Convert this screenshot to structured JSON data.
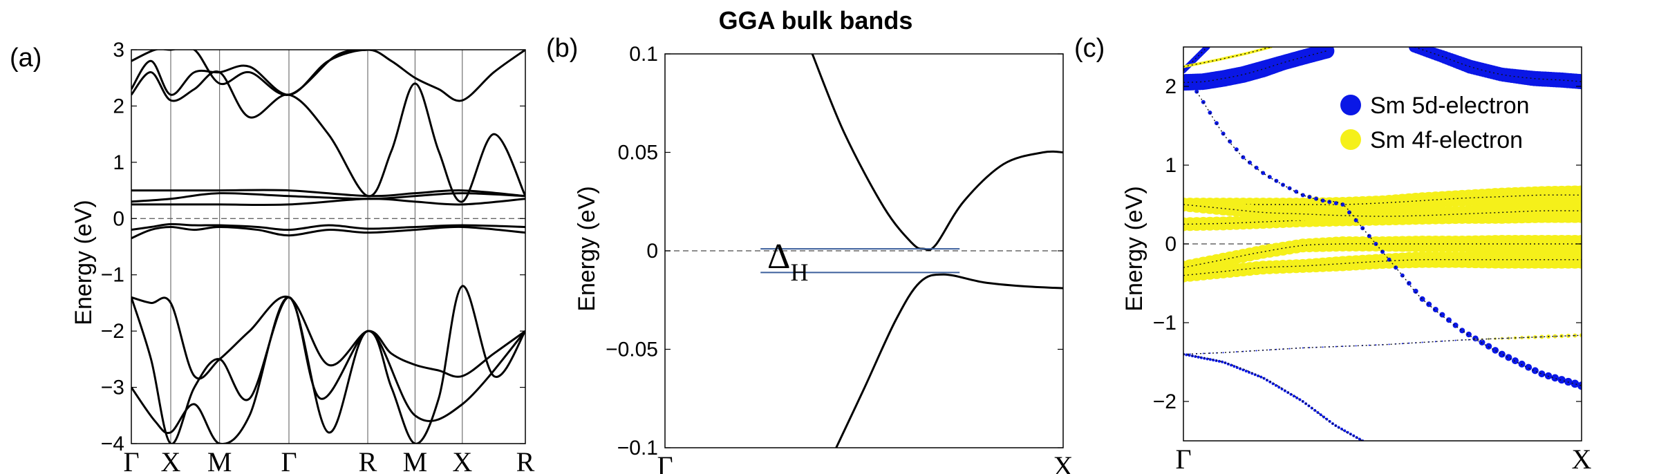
{
  "title": "GGA bulk bands",
  "colors": {
    "line": "#000000",
    "sm5d": "#0a17e6",
    "sm4f": "#f5f01a",
    "gap_line": "#3b5f9c",
    "fermi": "#666666"
  },
  "chart_data": [
    {
      "panel_label": "(a)",
      "type": "line",
      "ylabel": "Energy (eV)",
      "ylim": [
        -4,
        3
      ],
      "yticks": [
        -4,
        -3,
        -2,
        -1,
        0,
        1,
        2,
        3
      ],
      "ytick_labels": [
        "−4",
        "−3",
        "−2",
        "−1",
        "0",
        "1",
        "2",
        "3"
      ],
      "kpath": [
        "Γ",
        "X",
        "M",
        "Γ",
        "R",
        "M",
        "X",
        "R"
      ],
      "kpos": [
        0,
        0.5,
        1.12,
        2.0,
        3.0,
        3.6,
        4.2,
        5.0
      ],
      "fermi_level": 0,
      "series": [
        {
          "x": [
            0,
            0.25,
            0.5,
            0.8,
            1.12,
            1.5,
            2.0,
            2.5,
            3.0,
            3.3,
            3.6,
            3.9,
            4.2,
            4.6,
            5.0
          ],
          "y": [
            -1.4,
            -1.5,
            -1.5,
            -2.8,
            -2.5,
            -2.0,
            -1.4,
            -2.6,
            -2.0,
            -2.4,
            -2.6,
            -2.7,
            -2.8,
            -2.4,
            -2.0
          ]
        },
        {
          "x": [
            0,
            0.25,
            0.5,
            0.8,
            1.12,
            1.5,
            2.0,
            2.4,
            3.0,
            3.3,
            3.6,
            3.9,
            4.2,
            4.6,
            5.0
          ],
          "y": [
            -1.4,
            -2.5,
            -4.0,
            -3.0,
            -2.5,
            -3.2,
            -1.4,
            -3.2,
            -2.0,
            -3.0,
            -4.0,
            -3.2,
            -1.2,
            -2.8,
            -2.0
          ]
        },
        {
          "x": [
            0,
            0.3,
            0.5,
            0.8,
            1.12,
            1.5,
            2.0,
            2.5,
            3.0,
            3.6,
            4.2,
            5.0
          ],
          "y": [
            -3.0,
            -3.6,
            -3.8,
            -3.3,
            -4.0,
            -3.5,
            -1.4,
            -3.8,
            -2.0,
            -3.5,
            -3.3,
            -2.0
          ]
        },
        {
          "x": [
            0,
            0.25,
            0.5,
            0.8,
            1.12,
            1.6,
            2.0,
            2.5,
            3.0,
            3.6,
            4.2,
            5.0
          ],
          "y": [
            -0.35,
            -0.2,
            -0.15,
            -0.2,
            -0.15,
            -0.2,
            -0.3,
            -0.2,
            -0.25,
            -0.2,
            -0.15,
            -0.25
          ]
        },
        {
          "x": [
            0,
            0.25,
            0.5,
            0.8,
            1.12,
            1.6,
            2.0,
            2.5,
            3.0,
            3.6,
            4.2,
            5.0
          ],
          "y": [
            -0.2,
            -0.15,
            -0.1,
            -0.12,
            -0.12,
            -0.15,
            -0.2,
            -0.12,
            -0.18,
            -0.15,
            -0.12,
            -0.15
          ]
        },
        {
          "x": [
            0,
            0.5,
            1.12,
            2.0,
            3.0,
            3.6,
            4.2,
            5.0
          ],
          "y": [
            0.25,
            0.25,
            0.25,
            0.25,
            0.35,
            0.3,
            0.25,
            0.35
          ]
        },
        {
          "x": [
            0,
            0.5,
            1.12,
            2.0,
            3.0,
            3.6,
            4.2,
            5.0
          ],
          "y": [
            0.3,
            0.35,
            0.45,
            0.4,
            0.35,
            0.4,
            0.45,
            0.4
          ]
        },
        {
          "x": [
            0,
            0.5,
            1.12,
            2.0,
            3.0,
            3.6,
            4.2,
            5.0
          ],
          "y": [
            0.5,
            0.5,
            0.5,
            0.5,
            0.4,
            0.45,
            0.5,
            0.4
          ]
        },
        {
          "x": [
            0,
            0.25,
            0.5,
            0.8,
            1.12,
            1.5,
            2.0,
            2.5,
            3.0,
            3.3,
            3.6,
            3.9,
            4.2,
            4.6,
            5.0
          ],
          "y": [
            2.2,
            2.6,
            2.1,
            2.3,
            2.6,
            1.8,
            2.2,
            1.5,
            0.4,
            1.2,
            2.4,
            1.2,
            0.3,
            1.5,
            0.4
          ]
        },
        {
          "x": [
            0,
            0.25,
            0.5,
            0.8,
            1.12,
            1.5,
            2.0,
            2.5,
            3.0,
            3.3,
            3.6,
            3.9,
            4.2,
            4.6,
            5.0
          ],
          "y": [
            2.3,
            2.8,
            2.2,
            2.6,
            2.6,
            2.7,
            2.2,
            2.8,
            3.0,
            2.8,
            2.5,
            2.3,
            2.1,
            2.6,
            3.0
          ]
        },
        {
          "x": [
            0,
            0.3,
            0.5,
            0.8,
            1.12,
            1.5,
            2.0,
            2.6,
            3.0
          ],
          "y": [
            2.8,
            3.0,
            3.0,
            3.0,
            2.4,
            2.6,
            2.2,
            2.9,
            3.0
          ]
        }
      ]
    },
    {
      "panel_label": "(b)",
      "type": "line",
      "ylabel": "Energy (eV)",
      "ylim": [
        -0.1,
        0.1
      ],
      "yticks": [
        -0.1,
        -0.05,
        0,
        0.05,
        0.1
      ],
      "ytick_labels": [
        "−0.1",
        "−0.05",
        "0",
        "0.05",
        "0.1"
      ],
      "kpath": [
        "Γ",
        "X"
      ],
      "kpos": [
        0,
        1
      ],
      "fermi_level": 0,
      "gap_label_main": "Δ",
      "gap_label_sub": "H",
      "gap_lines": [
        0.001,
        -0.011
      ],
      "series": [
        {
          "x": [
            0.37,
            0.45,
            0.55,
            0.62,
            0.65,
            0.68,
            0.75,
            0.85,
            0.95,
            1.0
          ],
          "y": [
            0.1,
            0.06,
            0.022,
            0.004,
            0.001,
            0.003,
            0.025,
            0.044,
            0.05,
            0.05
          ]
        },
        {
          "x": [
            0.43,
            0.5,
            0.58,
            0.64,
            0.7,
            0.8,
            0.9,
            1.0
          ],
          "y": [
            -0.1,
            -0.07,
            -0.035,
            -0.016,
            -0.012,
            -0.016,
            -0.018,
            -0.019
          ]
        }
      ]
    },
    {
      "panel_label": "(c)",
      "type": "scatter",
      "ylabel": "Energy (eV)",
      "ylim": [
        -2.5,
        2.5
      ],
      "yticks": [
        -2,
        -1,
        0,
        1,
        2
      ],
      "ytick_labels": [
        "−2",
        "−1",
        "0",
        "1",
        "2"
      ],
      "kpath": [
        "Γ",
        "X"
      ],
      "kpos": [
        0,
        1
      ],
      "fermi_level": 0,
      "legend": [
        {
          "name": "Sm 5d-electron",
          "color": "#0a17e6"
        },
        {
          "name": "Sm 4f-electron",
          "color": "#f5f01a"
        }
      ],
      "bands": [
        {
          "x": [
            0,
            0.1,
            0.2,
            0.3,
            0.4,
            0.5,
            0.6,
            0.7,
            0.8,
            0.9,
            1.0
          ],
          "y": [
            -0.4,
            -0.35,
            -0.3,
            -0.28,
            -0.25,
            -0.22,
            -0.2,
            -0.2,
            -0.2,
            -0.2,
            -0.2
          ],
          "f4": [
            10,
            10,
            10,
            10,
            11,
            11,
            12,
            12,
            13,
            13,
            13
          ],
          "d5": [
            0,
            0,
            0,
            0,
            0,
            0,
            0,
            0,
            0,
            0,
            0
          ]
        },
        {
          "x": [
            0,
            0.1,
            0.2,
            0.3,
            0.4,
            0.5,
            0.6,
            0.7,
            0.8,
            0.9,
            1.0
          ],
          "y": [
            -0.3,
            -0.2,
            -0.1,
            -0.02,
            0.0,
            0.0,
            0.0,
            0.0,
            0.0,
            0.0,
            0.0
          ],
          "f4": [
            10,
            10,
            10,
            10,
            11,
            11,
            12,
            12,
            13,
            13,
            13
          ],
          "d5": [
            0,
            0,
            0,
            0,
            0,
            0,
            0,
            0,
            0,
            0,
            0
          ]
        },
        {
          "x": [
            0,
            0.1,
            0.2,
            0.3,
            0.4,
            0.5,
            0.6,
            0.7,
            0.8,
            0.9,
            1.0
          ],
          "y": [
            0.25,
            0.26,
            0.28,
            0.3,
            0.32,
            0.33,
            0.35,
            0.36,
            0.37,
            0.38,
            0.38
          ],
          "f4": [
            10,
            10,
            10,
            10,
            11,
            11,
            12,
            12,
            13,
            13,
            13
          ],
          "d5": [
            0,
            0,
            0,
            0,
            0,
            0,
            0,
            0,
            0,
            0,
            0
          ]
        },
        {
          "x": [
            0,
            0.1,
            0.2,
            0.3,
            0.4,
            0.5,
            0.6,
            0.7,
            0.8,
            0.9,
            1.0
          ],
          "y": [
            0.5,
            0.5,
            0.5,
            0.5,
            0.5,
            0.52,
            0.55,
            0.58,
            0.6,
            0.62,
            0.62
          ],
          "f4": [
            10,
            10,
            10,
            10,
            11,
            11,
            12,
            12,
            13,
            13,
            14
          ],
          "d5": [
            0,
            0,
            0,
            0,
            0,
            0,
            0,
            0,
            0,
            0,
            0
          ]
        },
        {
          "x": [
            0,
            0.1,
            0.2,
            0.3,
            0.4,
            0.5,
            0.6,
            0.7,
            0.8,
            0.9,
            1.0
          ],
          "y": [
            0.5,
            0.45,
            0.4,
            0.38,
            0.36,
            0.35,
            0.36,
            0.38,
            0.4,
            0.42,
            0.42
          ],
          "f4": [
            10,
            10,
            10,
            10,
            11,
            11,
            12,
            12,
            13,
            13,
            13
          ],
          "d5": [
            0,
            0,
            0,
            0,
            0,
            0,
            0,
            0,
            0,
            0,
            0
          ]
        },
        {
          "x": [
            0,
            0.05,
            0.1,
            0.15,
            0.2,
            0.25,
            0.3,
            0.35,
            0.4,
            0.45,
            0.5,
            0.55,
            0.6,
            0.7,
            0.8,
            0.9,
            1.0
          ],
          "y": [
            2.2,
            1.8,
            1.4,
            1.1,
            0.9,
            0.75,
            0.62,
            0.55,
            0.5,
            0.2,
            -0.1,
            -0.4,
            -0.7,
            -1.1,
            -1.4,
            -1.65,
            -1.8
          ],
          "f4": [
            0,
            0,
            0,
            0,
            2,
            2,
            3,
            4,
            4,
            0,
            0,
            0,
            0,
            0,
            0,
            0,
            0
          ],
          "d5": [
            3,
            3,
            3,
            3,
            3,
            3,
            3,
            3,
            3,
            3,
            3,
            3,
            4,
            4,
            5,
            5,
            6
          ]
        },
        {
          "x": [
            0,
            0.1,
            0.2,
            0.3,
            0.4,
            0.5,
            0.6,
            0.7,
            0.8,
            0.9,
            1.0
          ],
          "y": [
            -1.4,
            -1.38,
            -1.35,
            -1.32,
            -1.3,
            -1.28,
            -1.25,
            -1.22,
            -1.2,
            -1.18,
            -1.16
          ],
          "f4": [
            0,
            0,
            0,
            0,
            0,
            0,
            0,
            1,
            2,
            3,
            3
          ],
          "d5": [
            1,
            1,
            1,
            1,
            1,
            1,
            1,
            1,
            1,
            1,
            1
          ]
        },
        {
          "x": [
            0,
            0.1,
            0.2,
            0.3,
            0.38,
            0.45
          ],
          "y": [
            -1.4,
            -1.5,
            -1.7,
            -2.0,
            -2.3,
            -2.5
          ],
          "f4": [
            0,
            0,
            0,
            0,
            0,
            0
          ],
          "d5": [
            2,
            2,
            2,
            2,
            2,
            2
          ]
        },
        {
          "x": [
            0,
            0.05,
            0.1,
            0.15,
            0.2,
            0.25,
            0.3,
            0.36
          ],
          "y": [
            2.05,
            2.06,
            2.1,
            2.15,
            2.22,
            2.3,
            2.37,
            2.45
          ],
          "f4": [
            0,
            0,
            0,
            0,
            0,
            0,
            0,
            0
          ],
          "d5": [
            12,
            12,
            12,
            12,
            12,
            11,
            11,
            11
          ]
        },
        {
          "x": [
            0.58,
            0.65,
            0.72,
            0.8,
            0.88,
            0.95,
            1.0
          ],
          "y": [
            2.5,
            2.38,
            2.25,
            2.15,
            2.1,
            2.08,
            2.06
          ],
          "f4": [
            0,
            0,
            0,
            0,
            0,
            0,
            0
          ],
          "d5": [
            8,
            9,
            10,
            10,
            11,
            11,
            11
          ]
        },
        {
          "x": [
            0,
            0.03,
            0.06
          ],
          "y": [
            2.2,
            2.35,
            2.5
          ],
          "f4": [
            0,
            0,
            0
          ],
          "d5": [
            4,
            4,
            4
          ]
        },
        {
          "x": [
            0,
            0.08,
            0.16,
            0.22
          ],
          "y": [
            2.25,
            2.33,
            2.42,
            2.5
          ],
          "f4": [
            2,
            2,
            2,
            2
          ],
          "d5": [
            0,
            0,
            0,
            0
          ]
        }
      ]
    }
  ]
}
